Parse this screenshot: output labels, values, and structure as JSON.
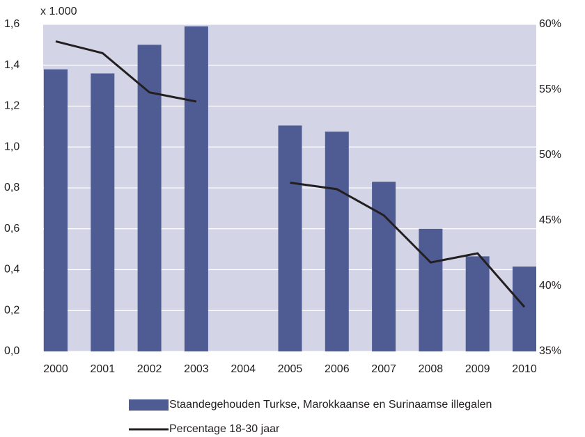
{
  "chart_data": {
    "type": "bar_line",
    "y_unit_label": "x 1.000",
    "categories": [
      "2000",
      "2001",
      "2002",
      "2003",
      "2004",
      "2005",
      "2006",
      "2007",
      "2008",
      "2009",
      "2010"
    ],
    "series": [
      {
        "name": "Staandegehouden Turkse, Marokkaanse en Surinaamse illegalen",
        "type": "bar",
        "color": "#4f5b93",
        "axis": "y",
        "values": [
          1.38,
          1.36,
          1.5,
          1.59,
          null,
          1.105,
          1.075,
          0.83,
          0.6,
          0.465,
          0.415
        ]
      },
      {
        "name": "Percentage 18-30 jaar",
        "type": "line",
        "color": "#231f20",
        "axis": "y2",
        "values": [
          58.7,
          57.8,
          54.8,
          54.1,
          null,
          47.9,
          47.4,
          45.4,
          41.8,
          42.5,
          38.4
        ]
      }
    ],
    "ylim": [
      0,
      1.6
    ],
    "yticks": [
      {
        "value": 0,
        "label": "0,0"
      },
      {
        "value": 0.2,
        "label": "0,2"
      },
      {
        "value": 0.4,
        "label": "0,4"
      },
      {
        "value": 0.6,
        "label": "0,6"
      },
      {
        "value": 0.8,
        "label": "0,8"
      },
      {
        "value": 1.0,
        "label": "1,0"
      },
      {
        "value": 1.2,
        "label": "1,2"
      },
      {
        "value": 1.4,
        "label": "1,4"
      },
      {
        "value": 1.6,
        "label": "1,6"
      }
    ],
    "y2lim": [
      35,
      60
    ],
    "y2ticks": [
      {
        "value": 35,
        "label": "35%"
      },
      {
        "value": 40,
        "label": "40%"
      },
      {
        "value": 45,
        "label": "45%"
      },
      {
        "value": 50,
        "label": "50%"
      },
      {
        "value": 55,
        "label": "55%"
      },
      {
        "value": 60,
        "label": "60%"
      }
    ],
    "grid": true,
    "plot_background": "#d3d5e6",
    "legend": "bottom"
  }
}
